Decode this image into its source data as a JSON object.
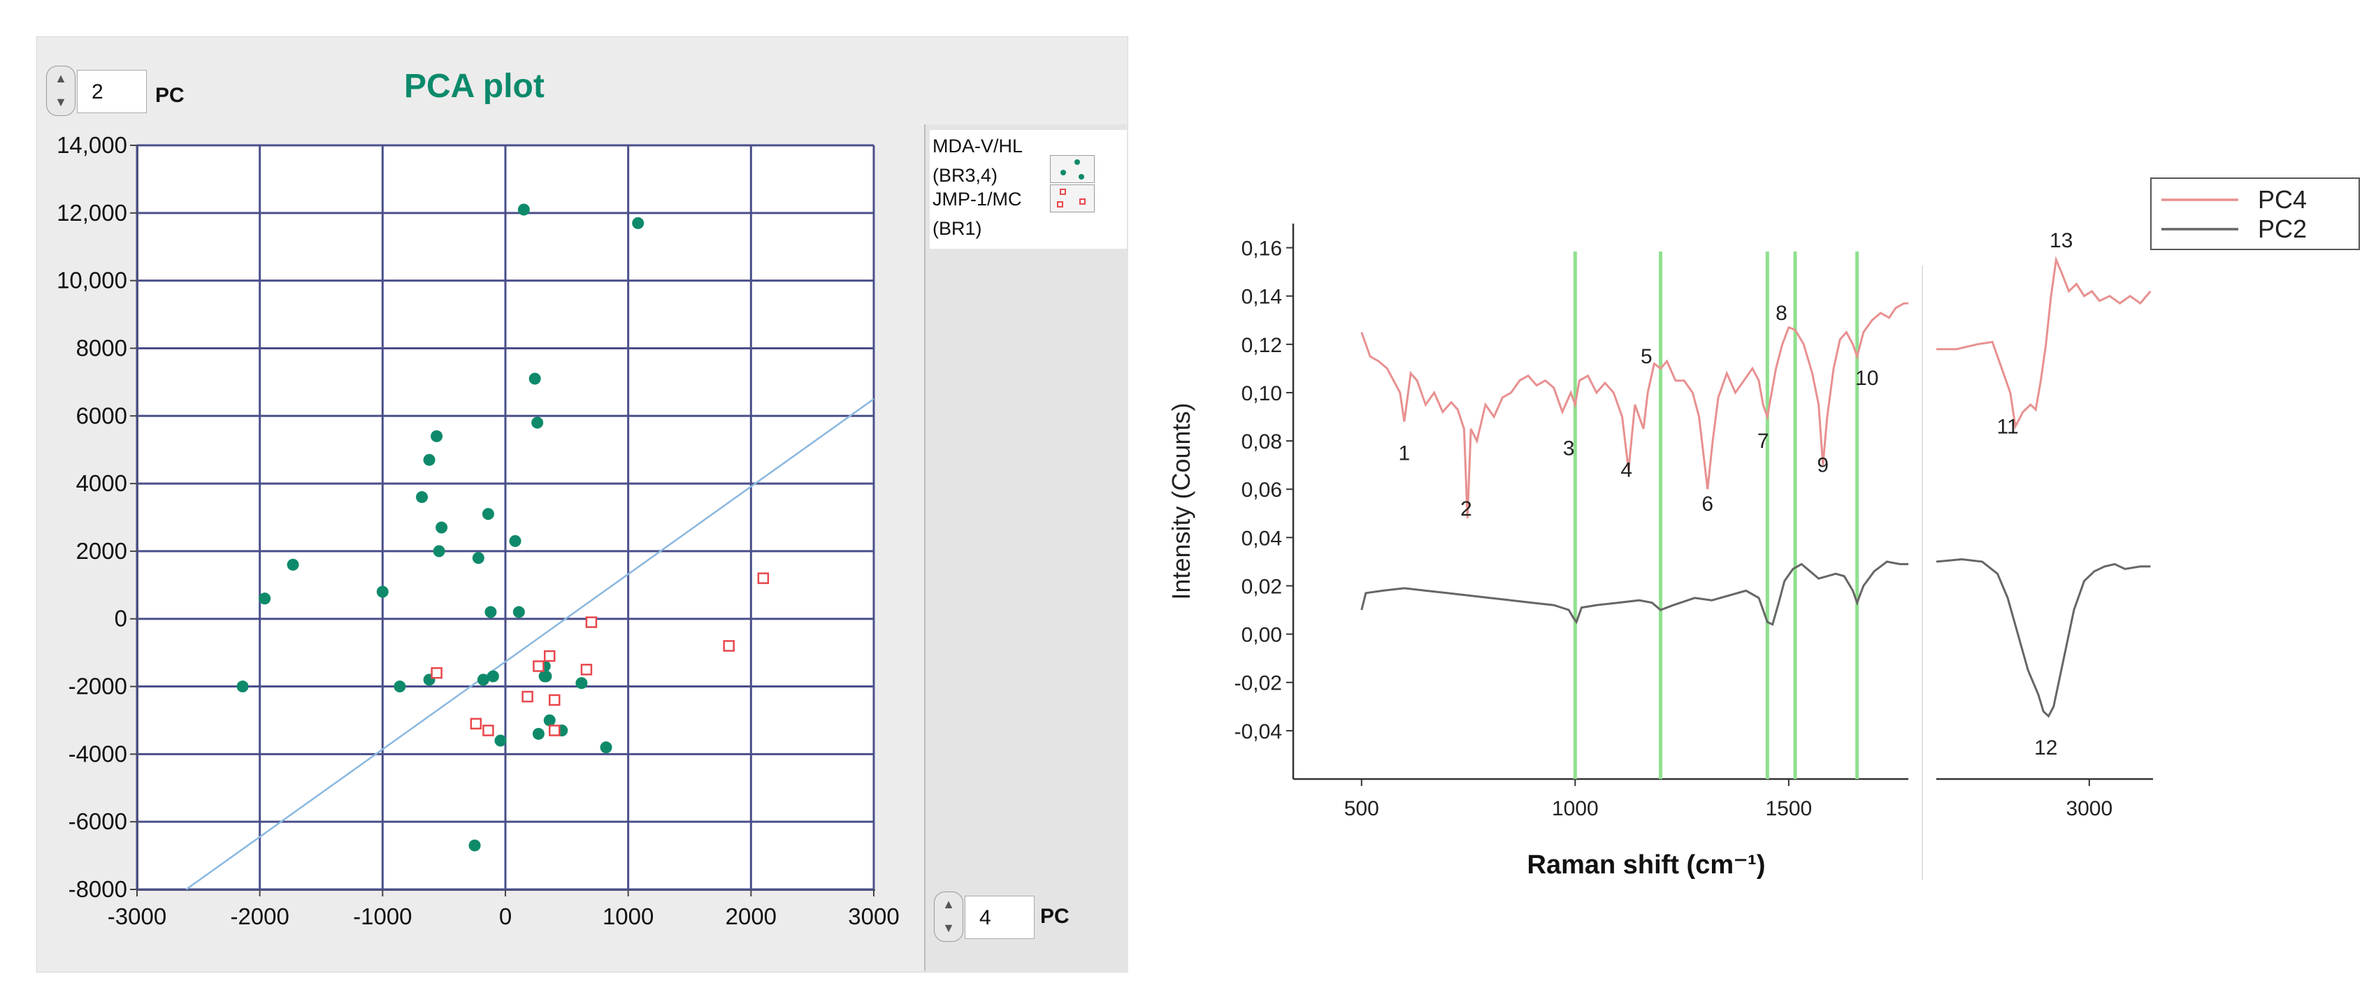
{
  "left_panel": {
    "title": "PCA plot",
    "y_pc": {
      "value": "2",
      "label": "PC"
    },
    "x_pc": {
      "value": "4",
      "label": "PC"
    },
    "legend": [
      {
        "label_lines": [
          "MDA-V/HL",
          "(BR3,4)"
        ],
        "marker": "filled-circle",
        "color": "#0e8a6a"
      },
      {
        "label_lines": [
          "JMP-1/MC",
          "(BR1)"
        ],
        "marker": "open-square",
        "color": "#e8474c"
      }
    ]
  },
  "right_panel": {
    "y_axis_title": "Intensity (Counts)",
    "x_axis_title": "Raman shift (cm⁻¹)",
    "legend": [
      {
        "name": "PC4",
        "color": "#e89090"
      },
      {
        "name": "PC2",
        "color": "#666666"
      }
    ]
  },
  "chart_data": [
    {
      "type": "scatter",
      "title": "PCA plot",
      "xlim": [
        -3000,
        3000
      ],
      "ylim": [
        -8000,
        14000
      ],
      "x_ticks": [
        "-3000",
        "-2000",
        "-1000",
        "0",
        "1000",
        "2000",
        "3000"
      ],
      "x_tick_values": [
        -3000,
        -2000,
        -1000,
        0,
        1000,
        2000,
        3000
      ],
      "y_ticks": [
        "14,000",
        "12,000",
        "10,000",
        "8000",
        "6000",
        "4000",
        "2000",
        "0",
        "-2000",
        "-4000",
        "-6000",
        "-8000"
      ],
      "y_tick_values": [
        14000,
        12000,
        10000,
        8000,
        6000,
        4000,
        2000,
        0,
        -2000,
        -4000,
        -6000,
        -8000
      ],
      "grid": true,
      "series": [
        {
          "name": "MDA-V/HL (BR3,4)",
          "marker": "filled-circle",
          "color": "#0e8a6a",
          "points": [
            [
              150,
              12100
            ],
            [
              1080,
              11700
            ],
            [
              240,
              7100
            ],
            [
              260,
              5800
            ],
            [
              -560,
              5400
            ],
            [
              -620,
              4700
            ],
            [
              -680,
              3600
            ],
            [
              -140,
              3100
            ],
            [
              -520,
              2700
            ],
            [
              80,
              2300
            ],
            [
              -540,
              2000
            ],
            [
              -220,
              1800
            ],
            [
              -1730,
              1600
            ],
            [
              -1960,
              600
            ],
            [
              -1000,
              800
            ],
            [
              -120,
              200
            ],
            [
              110,
              200
            ],
            [
              -100,
              -1700
            ],
            [
              -180,
              -1800
            ],
            [
              320,
              -1400
            ],
            [
              320,
              -1700
            ],
            [
              -620,
              -1800
            ],
            [
              -860,
              -2000
            ],
            [
              -2140,
              -2000
            ],
            [
              620,
              -1900
            ],
            [
              360,
              -3000
            ],
            [
              460,
              -3300
            ],
            [
              270,
              -3400
            ],
            [
              -40,
              -3600
            ],
            [
              820,
              -3800
            ],
            [
              -250,
              -6700
            ],
            [
              330,
              -1700
            ]
          ]
        },
        {
          "name": "JMP-1/MC (BR1)",
          "marker": "open-square",
          "color": "#e8474c",
          "points": [
            [
              2100,
              1200
            ],
            [
              1820,
              -800
            ],
            [
              700,
              -100
            ],
            [
              -560,
              -1600
            ],
            [
              270,
              -1400
            ],
            [
              360,
              -1100
            ],
            [
              660,
              -1500
            ],
            [
              180,
              -2300
            ],
            [
              400,
              -2400
            ],
            [
              -240,
              -3100
            ],
            [
              -140,
              -3300
            ],
            [
              400,
              -3300
            ]
          ]
        }
      ],
      "reference_line": {
        "from": [
          -2600,
          -8000
        ],
        "to": [
          3000,
          6500
        ],
        "color": "#8ab8e0"
      }
    },
    {
      "type": "line",
      "ylabel": "Intensity (Counts)",
      "xlabel": "Raman shift (cm⁻¹)",
      "ylim": [
        -0.06,
        0.17
      ],
      "y_ticks": [
        "0,16",
        "0,14",
        "0,12",
        "0,10",
        "0,08",
        "0,06",
        "0,04",
        "0,02",
        "0,00",
        "-0,02",
        "-0,04"
      ],
      "y_tick_values": [
        0.16,
        0.14,
        0.12,
        0.1,
        0.08,
        0.06,
        0.04,
        0.02,
        0.0,
        -0.02,
        -0.04
      ],
      "broken_x_axis": true,
      "segments": [
        {
          "xlim": [
            340,
            1780
          ],
          "ticks": [
            "500",
            "1000",
            "1500"
          ],
          "tick_values": [
            500,
            1000,
            1500
          ]
        },
        {
          "xlim": [
            2400,
            3250
          ],
          "ticks": [
            "3000"
          ],
          "tick_values": [
            3000
          ]
        }
      ],
      "vertical_markers": [
        1000,
        1200,
        1450,
        1515,
        1660
      ],
      "vertical_marker_color": "#8fe08f",
      "series": [
        {
          "name": "PC4",
          "color": "#e89090",
          "points": [
            [
              500,
              0.125
            ],
            [
              520,
              0.115
            ],
            [
              540,
              0.113
            ],
            [
              560,
              0.11
            ],
            [
              575,
              0.105
            ],
            [
              590,
              0.1
            ],
            [
              600,
              0.088
            ],
            [
              615,
              0.108
            ],
            [
              630,
              0.105
            ],
            [
              650,
              0.095
            ],
            [
              670,
              0.1
            ],
            [
              690,
              0.092
            ],
            [
              710,
              0.096
            ],
            [
              725,
              0.093
            ],
            [
              740,
              0.085
            ],
            [
              748,
              0.048
            ],
            [
              756,
              0.085
            ],
            [
              770,
              0.08
            ],
            [
              790,
              0.095
            ],
            [
              810,
              0.09
            ],
            [
              830,
              0.098
            ],
            [
              850,
              0.1
            ],
            [
              870,
              0.105
            ],
            [
              890,
              0.107
            ],
            [
              910,
              0.103
            ],
            [
              930,
              0.105
            ],
            [
              950,
              0.102
            ],
            [
              970,
              0.092
            ],
            [
              990,
              0.1
            ],
            [
              1000,
              0.095
            ],
            [
              1010,
              0.105
            ],
            [
              1030,
              0.107
            ],
            [
              1050,
              0.1
            ],
            [
              1070,
              0.104
            ],
            [
              1090,
              0.1
            ],
            [
              1110,
              0.09
            ],
            [
              1125,
              0.068
            ],
            [
              1140,
              0.095
            ],
            [
              1160,
              0.085
            ],
            [
              1170,
              0.1
            ],
            [
              1185,
              0.112
            ],
            [
              1200,
              0.11
            ],
            [
              1215,
              0.113
            ],
            [
              1235,
              0.105
            ],
            [
              1255,
              0.105
            ],
            [
              1275,
              0.1
            ],
            [
              1290,
              0.09
            ],
            [
              1300,
              0.075
            ],
            [
              1310,
              0.06
            ],
            [
              1322,
              0.08
            ],
            [
              1335,
              0.098
            ],
            [
              1355,
              0.108
            ],
            [
              1375,
              0.1
            ],
            [
              1395,
              0.105
            ],
            [
              1415,
              0.11
            ],
            [
              1430,
              0.105
            ],
            [
              1440,
              0.095
            ],
            [
              1450,
              0.09
            ],
            [
              1460,
              0.1
            ],
            [
              1470,
              0.11
            ],
            [
              1485,
              0.12
            ],
            [
              1500,
              0.127
            ],
            [
              1515,
              0.126
            ],
            [
              1535,
              0.12
            ],
            [
              1555,
              0.108
            ],
            [
              1570,
              0.095
            ],
            [
              1580,
              0.07
            ],
            [
              1590,
              0.09
            ],
            [
              1605,
              0.11
            ],
            [
              1620,
              0.122
            ],
            [
              1635,
              0.125
            ],
            [
              1650,
              0.12
            ],
            [
              1660,
              0.115
            ],
            [
              1675,
              0.125
            ],
            [
              1695,
              0.13
            ],
            [
              1715,
              0.133
            ],
            [
              1735,
              0.131
            ],
            [
              1750,
              0.135
            ],
            [
              1770,
              0.137
            ],
            [
              1780,
              0.137
            ],
            [
              2400,
              0.118
            ],
            [
              2480,
              0.118
            ],
            [
              2560,
              0.12
            ],
            [
              2620,
              0.121
            ],
            [
              2650,
              0.112
            ],
            [
              2690,
              0.1
            ],
            [
              2710,
              0.086
            ],
            [
              2740,
              0.092
            ],
            [
              2770,
              0.095
            ],
            [
              2790,
              0.093
            ],
            [
              2810,
              0.105
            ],
            [
              2830,
              0.12
            ],
            [
              2850,
              0.14
            ],
            [
              2870,
              0.155
            ],
            [
              2890,
              0.15
            ],
            [
              2920,
              0.142
            ],
            [
              2950,
              0.145
            ],
            [
              2980,
              0.14
            ],
            [
              3010,
              0.142
            ],
            [
              3040,
              0.138
            ],
            [
              3080,
              0.14
            ],
            [
              3120,
              0.137
            ],
            [
              3160,
              0.14
            ],
            [
              3200,
              0.137
            ],
            [
              3240,
              0.142
            ]
          ]
        },
        {
          "name": "PC2",
          "color": "#666666",
          "points": [
            [
              500,
              0.01
            ],
            [
              510,
              0.017
            ],
            [
              550,
              0.018
            ],
            [
              600,
              0.019
            ],
            [
              650,
              0.018
            ],
            [
              700,
              0.017
            ],
            [
              750,
              0.016
            ],
            [
              800,
              0.015
            ],
            [
              850,
              0.014
            ],
            [
              900,
              0.013
            ],
            [
              950,
              0.012
            ],
            [
              985,
              0.01
            ],
            [
              995,
              0.007
            ],
            [
              1003,
              0.005
            ],
            [
              1015,
              0.011
            ],
            [
              1050,
              0.012
            ],
            [
              1100,
              0.013
            ],
            [
              1150,
              0.014
            ],
            [
              1180,
              0.013
            ],
            [
              1200,
              0.01
            ],
            [
              1230,
              0.012
            ],
            [
              1280,
              0.015
            ],
            [
              1320,
              0.014
            ],
            [
              1360,
              0.016
            ],
            [
              1400,
              0.018
            ],
            [
              1430,
              0.015
            ],
            [
              1450,
              0.005
            ],
            [
              1462,
              0.004
            ],
            [
              1475,
              0.012
            ],
            [
              1490,
              0.022
            ],
            [
              1510,
              0.027
            ],
            [
              1530,
              0.029
            ],
            [
              1550,
              0.026
            ],
            [
              1570,
              0.023
            ],
            [
              1590,
              0.024
            ],
            [
              1610,
              0.025
            ],
            [
              1630,
              0.024
            ],
            [
              1650,
              0.018
            ],
            [
              1660,
              0.013
            ],
            [
              1675,
              0.02
            ],
            [
              1700,
              0.026
            ],
            [
              1730,
              0.03
            ],
            [
              1760,
              0.029
            ],
            [
              1780,
              0.029
            ],
            [
              2400,
              0.03
            ],
            [
              2500,
              0.031
            ],
            [
              2580,
              0.03
            ],
            [
              2640,
              0.025
            ],
            [
              2680,
              0.015
            ],
            [
              2720,
              0.0
            ],
            [
              2760,
              -0.015
            ],
            [
              2800,
              -0.025
            ],
            [
              2820,
              -0.032
            ],
            [
              2840,
              -0.034
            ],
            [
              2860,
              -0.03
            ],
            [
              2880,
              -0.02
            ],
            [
              2910,
              -0.005
            ],
            [
              2940,
              0.01
            ],
            [
              2980,
              0.022
            ],
            [
              3020,
              0.026
            ],
            [
              3060,
              0.028
            ],
            [
              3100,
              0.029
            ],
            [
              3140,
              0.027
            ],
            [
              3200,
              0.028
            ],
            [
              3240,
              0.028
            ]
          ]
        }
      ],
      "annotations": [
        {
          "text": "1",
          "x": 600,
          "y": 0.075
        },
        {
          "text": "2",
          "x": 745,
          "y": 0.052
        },
        {
          "text": "3",
          "x": 985,
          "y": 0.077
        },
        {
          "text": "4",
          "x": 1120,
          "y": 0.068
        },
        {
          "text": "5",
          "x": 1167,
          "y": 0.115
        },
        {
          "text": "6",
          "x": 1310,
          "y": 0.054
        },
        {
          "text": "7",
          "x": 1440,
          "y": 0.08
        },
        {
          "text": "8",
          "x": 1483,
          "y": 0.133
        },
        {
          "text": "9",
          "x": 1580,
          "y": 0.07
        },
        {
          "text": "10",
          "x": 1683,
          "y": 0.106
        },
        {
          "text": "11",
          "x": 2680,
          "y": 0.086
        },
        {
          "text": "12",
          "x": 2830,
          "y": -0.047
        },
        {
          "text": "13",
          "x": 2890,
          "y": 0.163
        }
      ]
    }
  ]
}
